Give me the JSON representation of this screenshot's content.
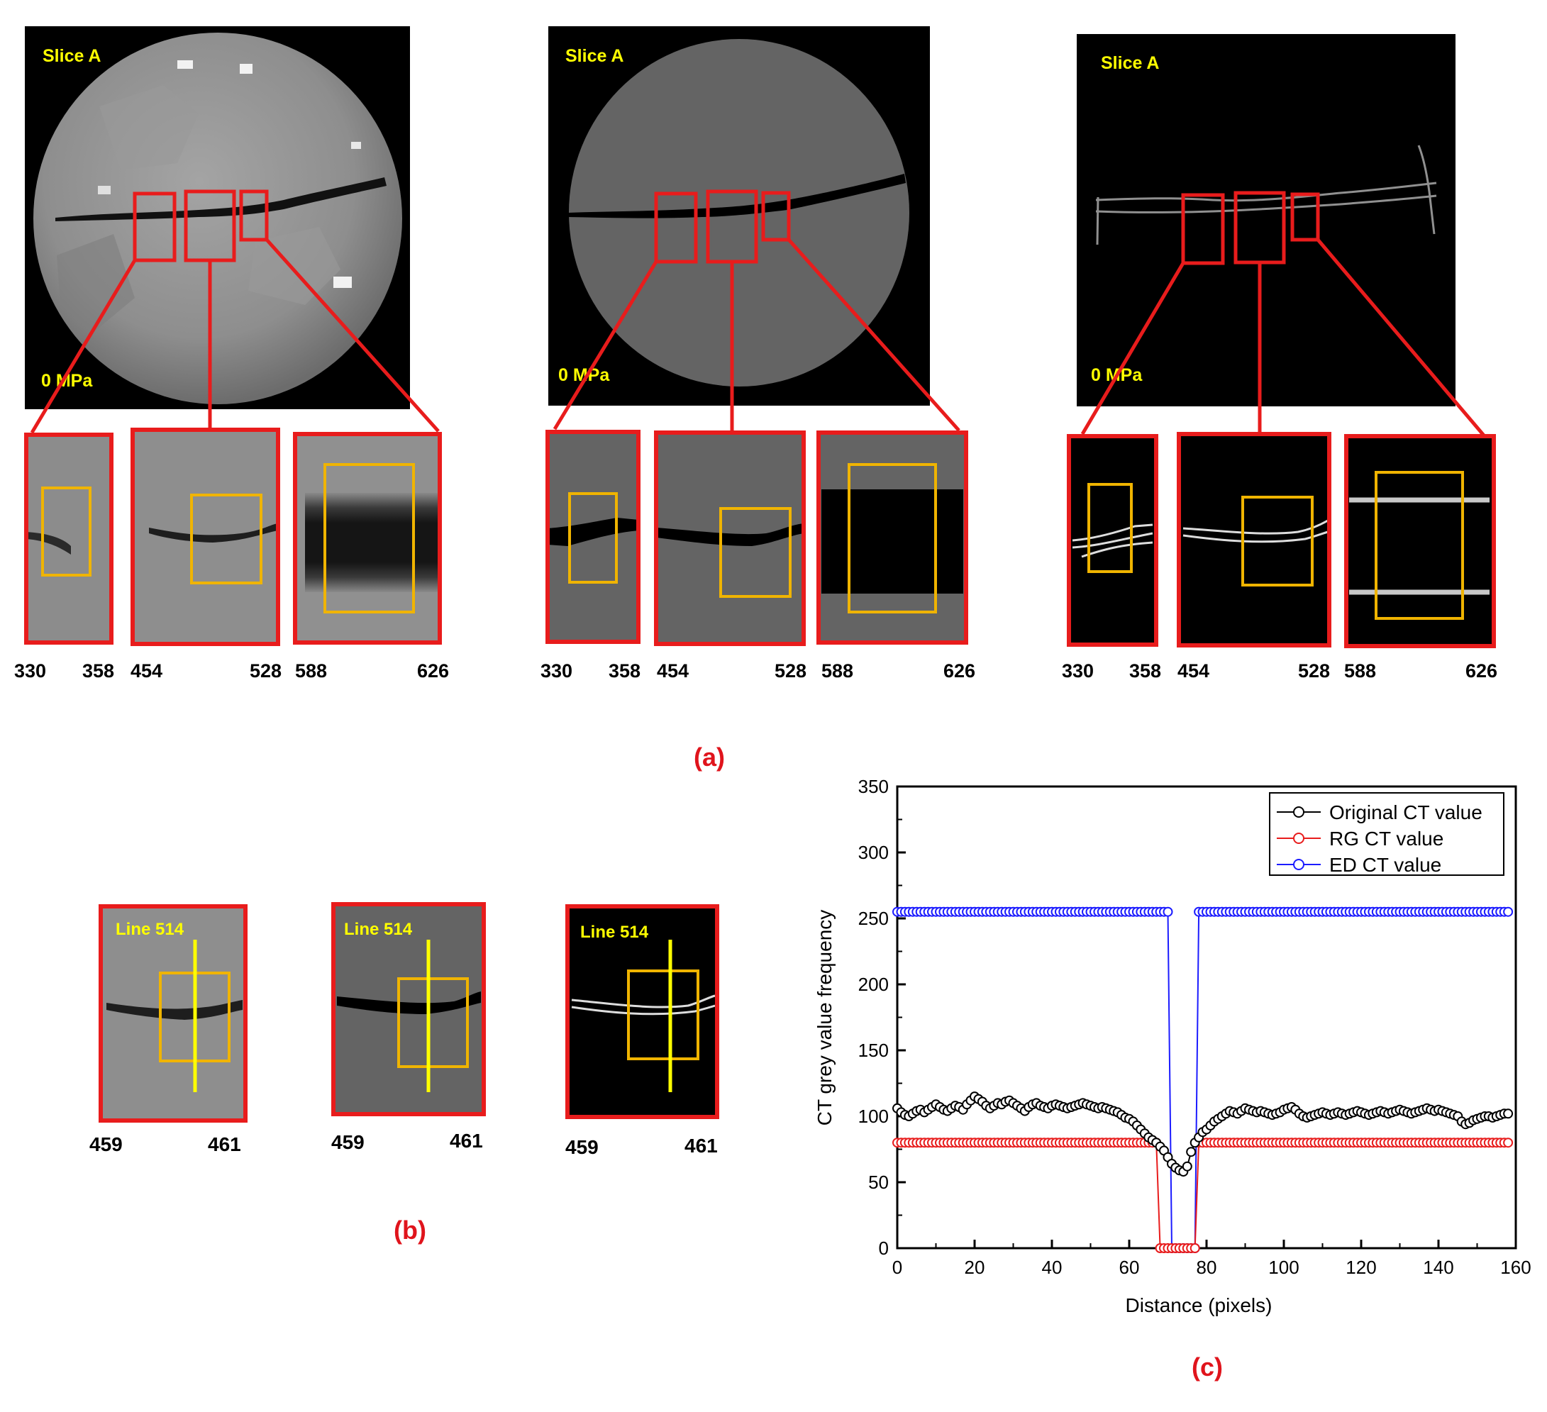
{
  "panel_a": {
    "caption": "(a)",
    "columns": [
      {
        "slice_label": "Slice A",
        "pressure_label": "0 MPa",
        "ticks": [
          "330",
          "358",
          "454",
          "528",
          "588",
          "626"
        ]
      },
      {
        "slice_label": "Slice A",
        "pressure_label": "0 MPa",
        "ticks": [
          "330",
          "358",
          "454",
          "528",
          "588",
          "626"
        ]
      },
      {
        "slice_label": "Slice A",
        "pressure_label": "0 MPa",
        "ticks": [
          "330",
          "358",
          "454",
          "528",
          "588",
          "626"
        ]
      }
    ]
  },
  "panel_b": {
    "caption": "(b)",
    "crops": [
      {
        "line_label": "Line 514",
        "ticks": [
          "459",
          "461"
        ]
      },
      {
        "line_label": "Line 514",
        "ticks": [
          "459",
          "461"
        ]
      },
      {
        "line_label": "Line 514",
        "ticks": [
          "459",
          "461"
        ]
      }
    ]
  },
  "panel_c": {
    "caption": "(c)"
  },
  "colors": {
    "frame_red": "#e81c1c",
    "roi_orange": "#f0b400",
    "label_yellow": "#ffff00",
    "caption_red": "#e0141c"
  },
  "chart_data": {
    "type": "line",
    "title": "",
    "xlabel": "Distance (pixels)",
    "ylabel": "CT grey value frequency",
    "xlim": [
      0,
      160
    ],
    "ylim": [
      0,
      350
    ],
    "xticks": [
      0,
      20,
      40,
      60,
      80,
      100,
      120,
      140,
      160
    ],
    "yticks": [
      0,
      50,
      100,
      150,
      200,
      250,
      300,
      350
    ],
    "legend_position": "top-right",
    "x": [
      0,
      1,
      2,
      3,
      4,
      5,
      6,
      7,
      8,
      9,
      10,
      11,
      12,
      13,
      14,
      15,
      16,
      17,
      18,
      19,
      20,
      21,
      22,
      23,
      24,
      25,
      26,
      27,
      28,
      29,
      30,
      31,
      32,
      33,
      34,
      35,
      36,
      37,
      38,
      39,
      40,
      41,
      42,
      43,
      44,
      45,
      46,
      47,
      48,
      49,
      50,
      51,
      52,
      53,
      54,
      55,
      56,
      57,
      58,
      59,
      60,
      61,
      62,
      63,
      64,
      65,
      66,
      67,
      68,
      69,
      70,
      71,
      72,
      73,
      74,
      75,
      76,
      77,
      78,
      79,
      80,
      81,
      82,
      83,
      84,
      85,
      86,
      87,
      88,
      89,
      90,
      91,
      92,
      93,
      94,
      95,
      96,
      97,
      98,
      99,
      100,
      101,
      102,
      103,
      104,
      105,
      106,
      107,
      108,
      109,
      110,
      111,
      112,
      113,
      114,
      115,
      116,
      117,
      118,
      119,
      120,
      121,
      122,
      123,
      124,
      125,
      126,
      127,
      128,
      129,
      130,
      131,
      132,
      133,
      134,
      135,
      136,
      137,
      138,
      139,
      140,
      141,
      142,
      143,
      144,
      145,
      146,
      147,
      148,
      149,
      150,
      151,
      152,
      153,
      154,
      155,
      156,
      157,
      158
    ],
    "series": [
      {
        "name": "Original CT value",
        "color": "#000000",
        "values": [
          106,
          103,
          101,
          100,
          102,
          104,
          105,
          103,
          105,
          107,
          109,
          107,
          105,
          104,
          106,
          108,
          107,
          105,
          109,
          112,
          115,
          113,
          111,
          108,
          106,
          108,
          110,
          109,
          111,
          112,
          110,
          108,
          106,
          104,
          107,
          109,
          110,
          108,
          107,
          106,
          108,
          109,
          108,
          107,
          106,
          107,
          108,
          109,
          110,
          109,
          108,
          107,
          106,
          107,
          106,
          105,
          104,
          103,
          101,
          99,
          98,
          96,
          93,
          90,
          87,
          84,
          82,
          80,
          77,
          74,
          69,
          64,
          61,
          59,
          58,
          62,
          73,
          80,
          84,
          88,
          90,
          93,
          96,
          98,
          100,
          102,
          104,
          103,
          102,
          104,
          106,
          105,
          104,
          103,
          104,
          103,
          102,
          101,
          102,
          103,
          105,
          106,
          107,
          105,
          102,
          100,
          99,
          100,
          101,
          102,
          103,
          102,
          101,
          102,
          103,
          102,
          101,
          102,
          103,
          104,
          103,
          102,
          101,
          102,
          103,
          104,
          103,
          102,
          103,
          104,
          105,
          104,
          103,
          102,
          103,
          104,
          105,
          106,
          105,
          104,
          105,
          104,
          103,
          102,
          101,
          100,
          96,
          94,
          95,
          97,
          98,
          99,
          100,
          100,
          99,
          100,
          101,
          102,
          102
        ]
      },
      {
        "name": "RG CT value",
        "color": "#e81c1c",
        "values": [
          80,
          80,
          80,
          80,
          80,
          80,
          80,
          80,
          80,
          80,
          80,
          80,
          80,
          80,
          80,
          80,
          80,
          80,
          80,
          80,
          80,
          80,
          80,
          80,
          80,
          80,
          80,
          80,
          80,
          80,
          80,
          80,
          80,
          80,
          80,
          80,
          80,
          80,
          80,
          80,
          80,
          80,
          80,
          80,
          80,
          80,
          80,
          80,
          80,
          80,
          80,
          80,
          80,
          80,
          80,
          80,
          80,
          80,
          80,
          80,
          80,
          80,
          80,
          80,
          80,
          80,
          80,
          80,
          0,
          0,
          0,
          0,
          0,
          0,
          0,
          0,
          0,
          0,
          80,
          80,
          80,
          80,
          80,
          80,
          80,
          80,
          80,
          80,
          80,
          80,
          80,
          80,
          80,
          80,
          80,
          80,
          80,
          80,
          80,
          80,
          80,
          80,
          80,
          80,
          80,
          80,
          80,
          80,
          80,
          80,
          80,
          80,
          80,
          80,
          80,
          80,
          80,
          80,
          80,
          80,
          80,
          80,
          80,
          80,
          80,
          80,
          80,
          80,
          80,
          80,
          80,
          80,
          80,
          80,
          80,
          80,
          80,
          80,
          80,
          80,
          80,
          80,
          80,
          80,
          80,
          80,
          80,
          80,
          80,
          80,
          80,
          80,
          80,
          80,
          80,
          80,
          80,
          80,
          80
        ]
      },
      {
        "name": "ED CT value",
        "color": "#1c1cff",
        "values": [
          255,
          255,
          255,
          255,
          255,
          255,
          255,
          255,
          255,
          255,
          255,
          255,
          255,
          255,
          255,
          255,
          255,
          255,
          255,
          255,
          255,
          255,
          255,
          255,
          255,
          255,
          255,
          255,
          255,
          255,
          255,
          255,
          255,
          255,
          255,
          255,
          255,
          255,
          255,
          255,
          255,
          255,
          255,
          255,
          255,
          255,
          255,
          255,
          255,
          255,
          255,
          255,
          255,
          255,
          255,
          255,
          255,
          255,
          255,
          255,
          255,
          255,
          255,
          255,
          255,
          255,
          255,
          255,
          255,
          255,
          255,
          0,
          0,
          0,
          0,
          0,
          0,
          0,
          255,
          255,
          255,
          255,
          255,
          255,
          255,
          255,
          255,
          255,
          255,
          255,
          255,
          255,
          255,
          255,
          255,
          255,
          255,
          255,
          255,
          255,
          255,
          255,
          255,
          255,
          255,
          255,
          255,
          255,
          255,
          255,
          255,
          255,
          255,
          255,
          255,
          255,
          255,
          255,
          255,
          255,
          255,
          255,
          255,
          255,
          255,
          255,
          255,
          255,
          255,
          255,
          255,
          255,
          255,
          255,
          255,
          255,
          255,
          255,
          255,
          255,
          255,
          255,
          255,
          255,
          255,
          255,
          255,
          255,
          255,
          255,
          255,
          255,
          255,
          255,
          255,
          255,
          255,
          255,
          255
        ]
      }
    ]
  }
}
